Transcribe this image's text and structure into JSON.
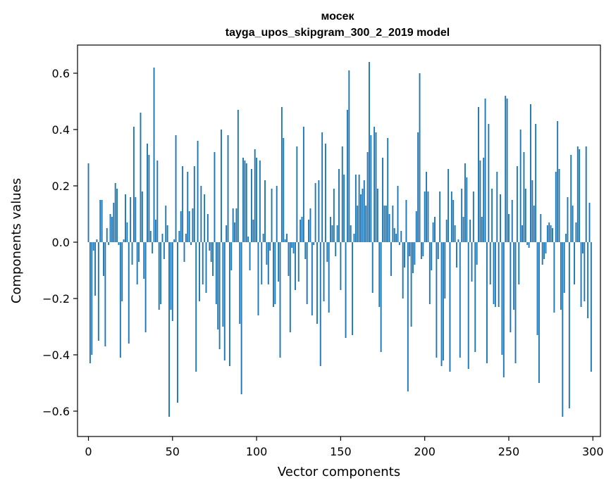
{
  "chart_data": {
    "type": "bar",
    "title": "мосек",
    "subtitle": "tayga_upos_skipgram_300_2_2019 model",
    "xlabel": "Vector components",
    "ylabel": "Components values",
    "xlim": [
      -6.5,
      304.5
    ],
    "ylim": [
      -0.69,
      0.7
    ],
    "xticks": [
      0,
      50,
      100,
      150,
      200,
      250,
      300
    ],
    "yticks": [
      -0.6,
      -0.4,
      -0.2,
      0.0,
      0.2,
      0.4,
      0.6
    ],
    "ytick_labels": [
      "−0.6",
      "−0.4",
      "−0.2",
      "0.0",
      "0.2",
      "0.4",
      "0.6"
    ],
    "grid": false,
    "legend": "none",
    "bar_color": "#1f77b4",
    "values": [
      0.28,
      -0.43,
      -0.4,
      -0.03,
      -0.19,
      0.01,
      -0.35,
      0.15,
      0.15,
      -0.12,
      -0.37,
      0.05,
      -0.01,
      0.1,
      0.09,
      0.14,
      0.21,
      0.19,
      -0.01,
      -0.41,
      -0.21,
      0.01,
      0.17,
      0.07,
      -0.36,
      0.16,
      -0.08,
      0.41,
      0.16,
      -0.15,
      -0.07,
      0.46,
      0.18,
      -0.13,
      -0.32,
      0.35,
      0.31,
      0.04,
      -0.04,
      0.62,
      0.08,
      0.29,
      -0.24,
      -0.22,
      0.03,
      -0.06,
      0.13,
      0.06,
      -0.62,
      -0.24,
      -0.28,
      0.01,
      0.38,
      -0.57,
      0.04,
      0.11,
      0.27,
      -0.07,
      0.03,
      0.25,
      0.11,
      -0.01,
      0.12,
      0.27,
      -0.46,
      0.36,
      -0.21,
      0.2,
      -0.15,
      0.17,
      -0.18,
      0.1,
      -0.03,
      -0.07,
      -0.12,
      0.32,
      -0.22,
      -0.31,
      -0.38,
      0.4,
      -0.3,
      -0.42,
      0.06,
      0.38,
      -0.44,
      -0.1,
      0.12,
      0.07,
      0.12,
      0.47,
      -0.29,
      -0.54,
      0.3,
      0.29,
      0.28,
      0.02,
      -0.1,
      0.26,
      0.08,
      0.33,
      0.3,
      -0.26,
      0.29,
      -0.15,
      0.03,
      0.22,
      -0.08,
      -0.15,
      -0.03,
      0.19,
      -0.23,
      -0.22,
      0.2,
      -0.14,
      -0.41,
      0.48,
      0.37,
      0.01,
      0.03,
      -0.12,
      -0.32,
      -0.02,
      -0.04,
      -0.17,
      0.34,
      -0.14,
      0.08,
      0.09,
      0.41,
      -0.06,
      -0.22,
      0.08,
      0.12,
      -0.26,
      -0.01,
      0.21,
      -0.29,
      0.22,
      -0.44,
      0.39,
      -0.21,
      0.35,
      -0.07,
      -0.25,
      0.09,
      0.06,
      0.19,
      -0.05,
      0.06,
      0.26,
      -0.17,
      0.34,
      0.24,
      -0.34,
      0.47,
      0.61,
      0.06,
      -0.33,
      0.03,
      0.24,
      0.13,
      0.24,
      0.17,
      0.19,
      0.22,
      0.13,
      0.32,
      0.64,
      0.38,
      -0.18,
      0.41,
      0.39,
      0.19,
      -0.23,
      -0.39,
      0.3,
      0.13,
      0.13,
      0.37,
      0.1,
      -0.12,
      0.13,
      0.05,
      0.03,
      0.2,
      -0.01,
      0.04,
      -0.2,
      -0.09,
      0.15,
      -0.53,
      -0.05,
      -0.3,
      -0.11,
      -0.08,
      0.11,
      0.39,
      0.6,
      -0.06,
      -0.05,
      0.18,
      0.25,
      0.18,
      -0.22,
      -0.1,
      0.07,
      0.09,
      -0.41,
      -0.06,
      0.18,
      -0.44,
      -0.42,
      -0.2,
      0.08,
      0.26,
      -0.46,
      0.18,
      0.15,
      0.06,
      -0.09,
      0.01,
      -0.41,
      0.19,
      0.09,
      0.28,
      0.23,
      -0.45,
      0.08,
      -0.14,
      0.18,
      -0.39,
      -0.08,
      0.48,
      0.29,
      0.09,
      0.3,
      0.51,
      -0.43,
      0.42,
      -0.15,
      0.19,
      -0.22,
      -0.23,
      0.25,
      -0.23,
      0.17,
      -0.4,
      -0.48,
      0.52,
      0.51,
      0.1,
      -0.32,
      0.15,
      -0.24,
      -0.43,
      0.27,
      -0.15,
      0.4,
      0.06,
      0.32,
      0.19,
      -0.01,
      -0.02,
      0.49,
      0.22,
      0.13,
      0.42,
      -0.33,
      -0.5,
      0.1,
      -0.08,
      -0.06,
      -0.04,
      0.06,
      0.07,
      0.06,
      0.05,
      -0.25,
      0.25,
      0.43,
      0.26,
      -0.24,
      -0.62,
      -0.18,
      0.03,
      0.16,
      -0.59,
      0.31,
      0.13,
      -0.15,
      0.07,
      0.34,
      0.33,
      -0.23,
      -0.04,
      -0.21,
      0.34,
      -0.27,
      0.14,
      -0.46
    ]
  }
}
